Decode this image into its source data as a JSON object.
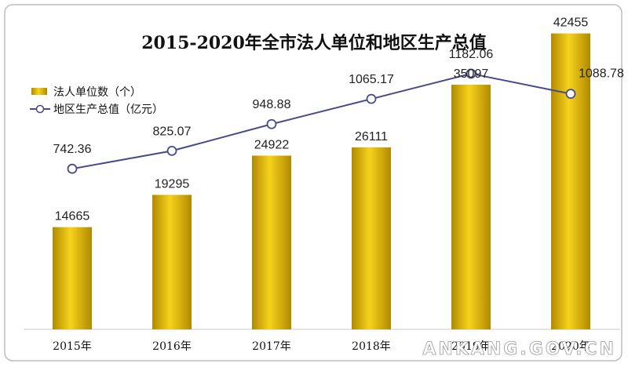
{
  "chart_data": {
    "type": "bar",
    "title": "2015-2020年全市法人单位和地区生产总值",
    "categories": [
      "2015年",
      "2016年",
      "2017年",
      "2018年",
      "2019年",
      "2020年"
    ],
    "series": [
      {
        "name": "法人单位数（个）",
        "type": "bar",
        "values": [
          14665,
          19295,
          24922,
          26111,
          35097,
          42455
        ],
        "labels": [
          "14665",
          "19295",
          "24922",
          "26111",
          "35097",
          "42455"
        ],
        "color": "#d4a900",
        "ylim": [
          0,
          45000
        ]
      },
      {
        "name": "地区生产总值（亿元）",
        "type": "line",
        "values": [
          742.36,
          825.07,
          948.88,
          1065.17,
          1182.06,
          1088.78
        ],
        "labels": [
          "742.36",
          "825.07",
          "948.88",
          "1065.17",
          "1182.06",
          "1088.78"
        ],
        "color": "#4a4a8a",
        "ylim": [
          0,
          1450
        ]
      }
    ],
    "legend": "top-left",
    "grid": false
  },
  "watermark": "ANKANG.GOV.CN"
}
